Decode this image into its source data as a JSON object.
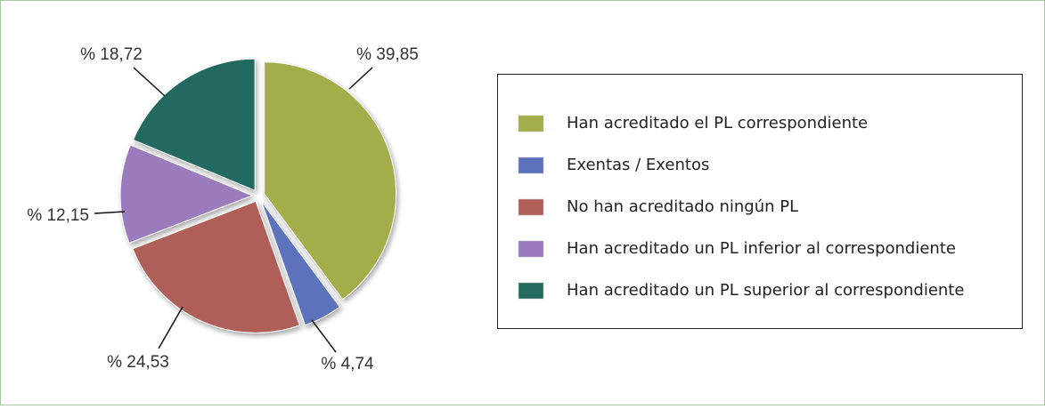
{
  "chart_data": {
    "type": "pie",
    "categories": [
      "Han acreditado el PL correspondiente",
      "Exentas / Exentos",
      "No han acreditado ningún PL",
      "Han acreditado un PL inferior al correspondiente",
      "Han acreditado un PL superior al correspondiente"
    ],
    "values": [
      39.85,
      4.74,
      24.53,
      12.15,
      18.72
    ],
    "value_labels": [
      "% 39,85",
      "% 4,74",
      "% 24,53",
      "% 12,15",
      "% 18,72"
    ],
    "colors": [
      "#a3ad4a",
      "#5b72bb",
      "#b05f58",
      "#9a7bbd",
      "#246b60"
    ],
    "legend": "right"
  }
}
